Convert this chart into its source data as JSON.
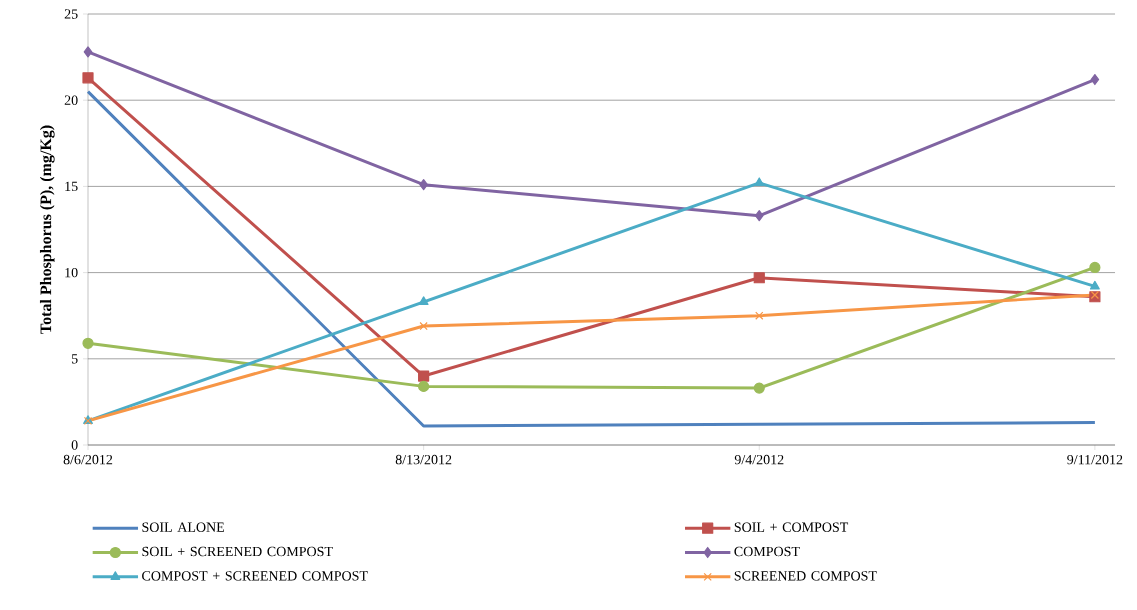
{
  "chart_data": {
    "type": "line",
    "ylabel": "Total Phosphorus (P), (mg/Kg)",
    "categories": [
      "8/6/2012",
      "8/13/2012",
      "9/4/2012",
      "9/11/2012"
    ],
    "ylim": [
      0,
      25
    ],
    "yticks": [
      0,
      5,
      10,
      15,
      20,
      25
    ],
    "grid": "y",
    "legend": "bottom",
    "line_style": "solid",
    "series": [
      {
        "name": "SOIL ALONE",
        "color": "#4f81bd",
        "marker": "none",
        "values": [
          20.5,
          1.1,
          1.2,
          1.3
        ]
      },
      {
        "name": "SOIL + COMPOST",
        "color": "#c0504d",
        "marker": "square",
        "values": [
          21.3,
          4.0,
          9.7,
          8.6
        ]
      },
      {
        "name": "SOIL + SCREENED COMPOST",
        "color": "#9bbb59",
        "marker": "circle",
        "values": [
          5.9,
          3.4,
          3.3,
          10.3
        ]
      },
      {
        "name": "COMPOST",
        "color": "#8064a2",
        "marker": "diamond",
        "values": [
          22.8,
          15.1,
          13.3,
          21.2
        ]
      },
      {
        "name": "COMPOST + SCREENED COMPOST",
        "color": "#4bacc6",
        "marker": "triangle",
        "values": [
          1.4,
          8.3,
          15.2,
          9.2
        ]
      },
      {
        "name": "SCREENED COMPOST",
        "color": "#f79646",
        "marker": "cross",
        "values": [
          1.4,
          6.9,
          7.5,
          8.7
        ]
      }
    ]
  }
}
